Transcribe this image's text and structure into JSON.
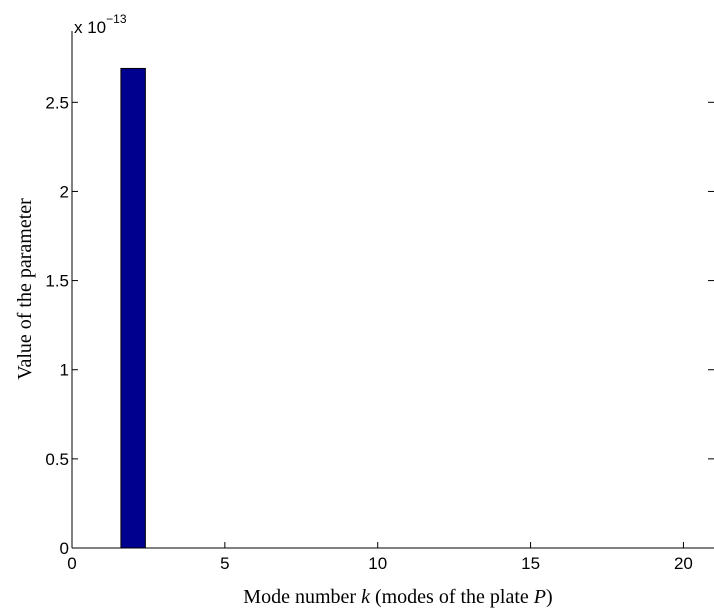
{
  "chart_data": {
    "type": "bar",
    "x": [
      2
    ],
    "values": [
      2.69e-13
    ],
    "xlim": [
      0,
      21
    ],
    "ylim": [
      0,
      2.9e-13
    ],
    "xticks": [
      0,
      5,
      10,
      15,
      20
    ],
    "xtick_labels": [
      "0",
      "5",
      "10",
      "15",
      "20"
    ],
    "yticks": [
      0,
      0.5,
      1,
      1.5,
      2,
      2.5
    ],
    "ytick_labels": [
      "0",
      "0.5",
      "1",
      "1.5",
      "2",
      "2.5"
    ],
    "y_multiplier_base": "x 10",
    "y_multiplier_exp": "−13",
    "xlabel_prefix": "Mode number ",
    "xlabel_var": "k",
    "xlabel_mid": " (modes of the plate ",
    "xlabel_sym": "P",
    "xlabel_suffix": ")",
    "ylabel": "Value of the parameter",
    "bar_color": "#00008f",
    "grid": false
  }
}
